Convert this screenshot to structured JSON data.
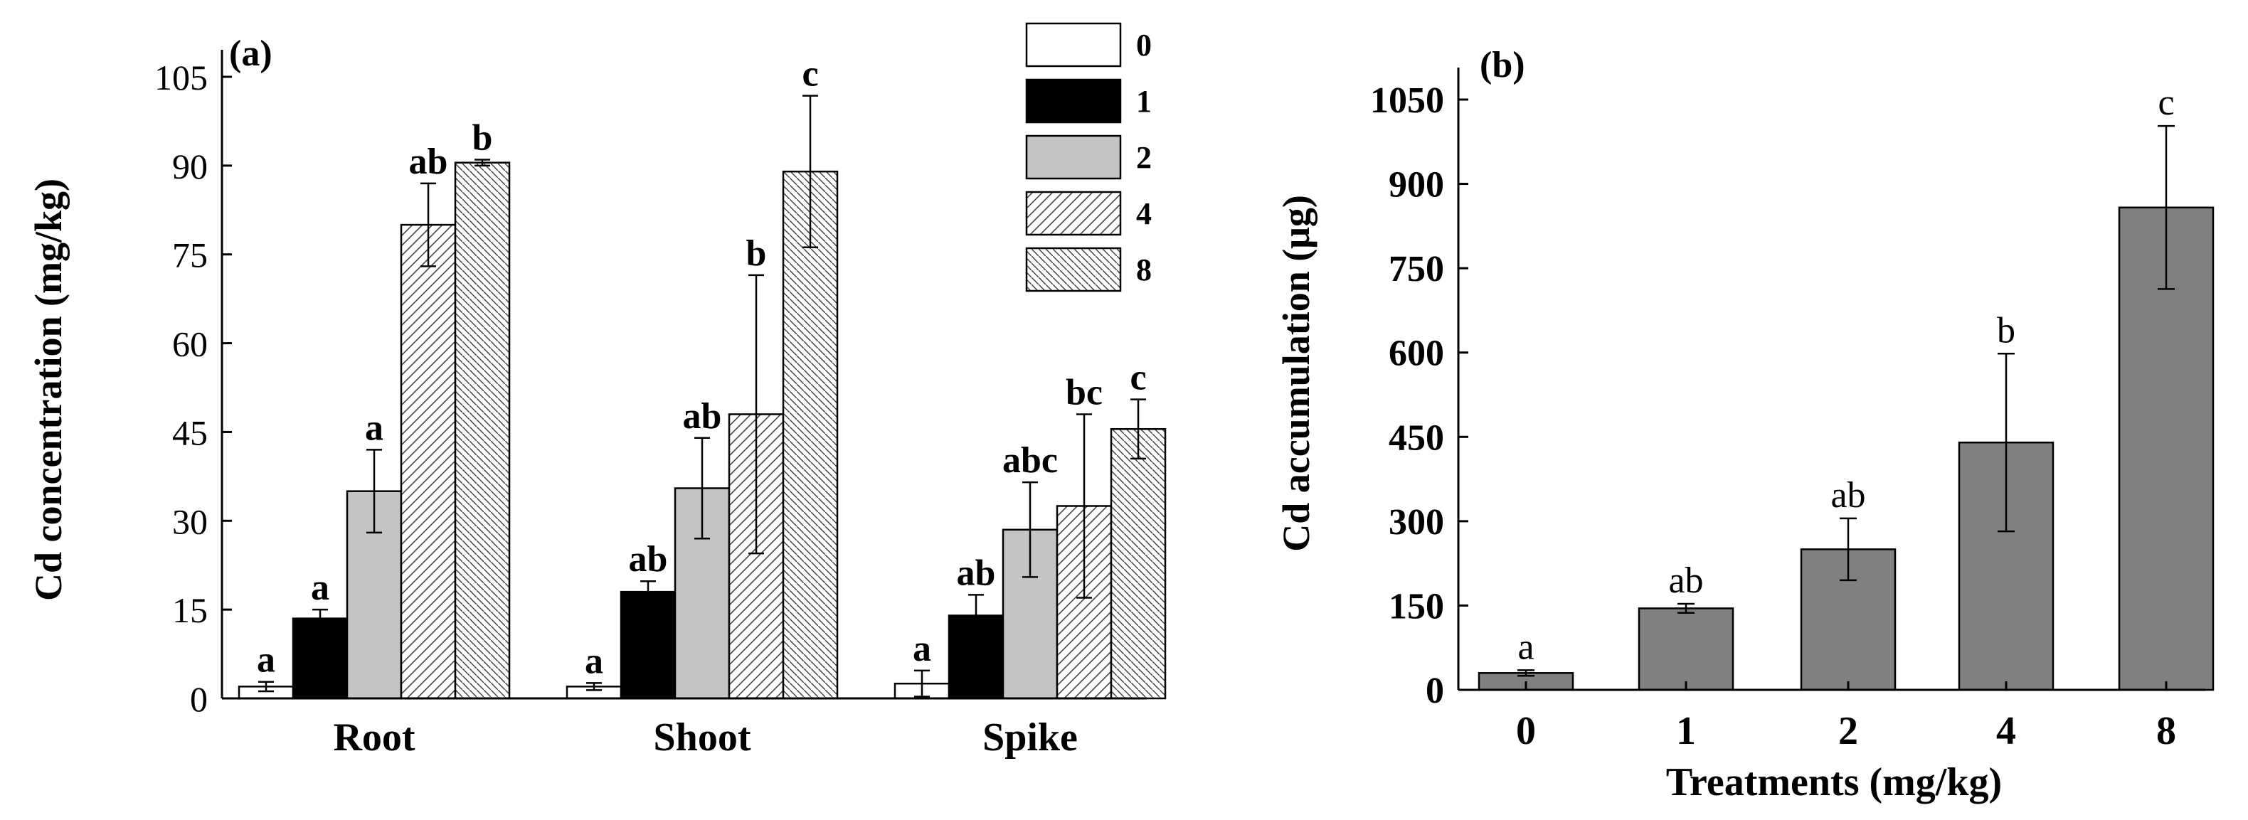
{
  "chart_data": [
    {
      "type": "bar",
      "panel_label": "(a)",
      "ylabel": "Cd concentration (mg/kg)",
      "xlabel": "",
      "ylim": [
        0,
        105
      ],
      "yticks": [
        "0",
        "15",
        "30",
        "45",
        "60",
        "75",
        "90",
        "105"
      ],
      "categories": [
        "Root",
        "Shoot",
        "Spike"
      ],
      "legend_position": "top-right",
      "series": [
        {
          "name": "0",
          "fill": "white",
          "values": [
            2.0,
            2.0,
            2.5
          ],
          "errors": [
            0.8,
            0.6,
            2.2
          ],
          "letters": [
            "a",
            "a",
            "a"
          ]
        },
        {
          "name": "1",
          "fill": "black",
          "values": [
            13.5,
            18.0,
            14.0
          ],
          "errors": [
            1.5,
            1.8,
            3.5
          ],
          "letters": [
            "a",
            "ab",
            "ab"
          ]
        },
        {
          "name": "2",
          "fill": "gray",
          "values": [
            35.0,
            35.5,
            28.5
          ],
          "errors": [
            7.0,
            8.5,
            8.0
          ],
          "letters": [
            "a",
            "ab",
            "abc"
          ]
        },
        {
          "name": "4",
          "fill": "hatch-right",
          "values": [
            80.0,
            48.0,
            32.5
          ],
          "errors": [
            7.0,
            23.5,
            15.5
          ],
          "letters": [
            "ab",
            "b",
            "bc"
          ]
        },
        {
          "name": "8",
          "fill": "hatch-left",
          "values": [
            90.5,
            89.0,
            45.5
          ],
          "errors": [
            0.5,
            12.8,
            5.0
          ],
          "letters": [
            "b",
            "c",
            "c"
          ]
        }
      ]
    },
    {
      "type": "bar",
      "panel_label": "(b)",
      "ylabel": "Cd accumulation (μg)",
      "xlabel": "Treatments (mg/kg)",
      "ylim": [
        0,
        1050
      ],
      "yticks": [
        "0",
        "150",
        "300",
        "450",
        "600",
        "750",
        "900",
        "1050"
      ],
      "categories": [
        "0",
        "1",
        "2",
        "4",
        "8"
      ],
      "values": [
        30,
        145,
        250,
        440,
        858
      ],
      "errors": [
        5,
        8,
        55,
        158,
        145
      ],
      "letters": [
        "a",
        "ab",
        "ab",
        "b",
        "c"
      ],
      "color": "#808080"
    }
  ]
}
